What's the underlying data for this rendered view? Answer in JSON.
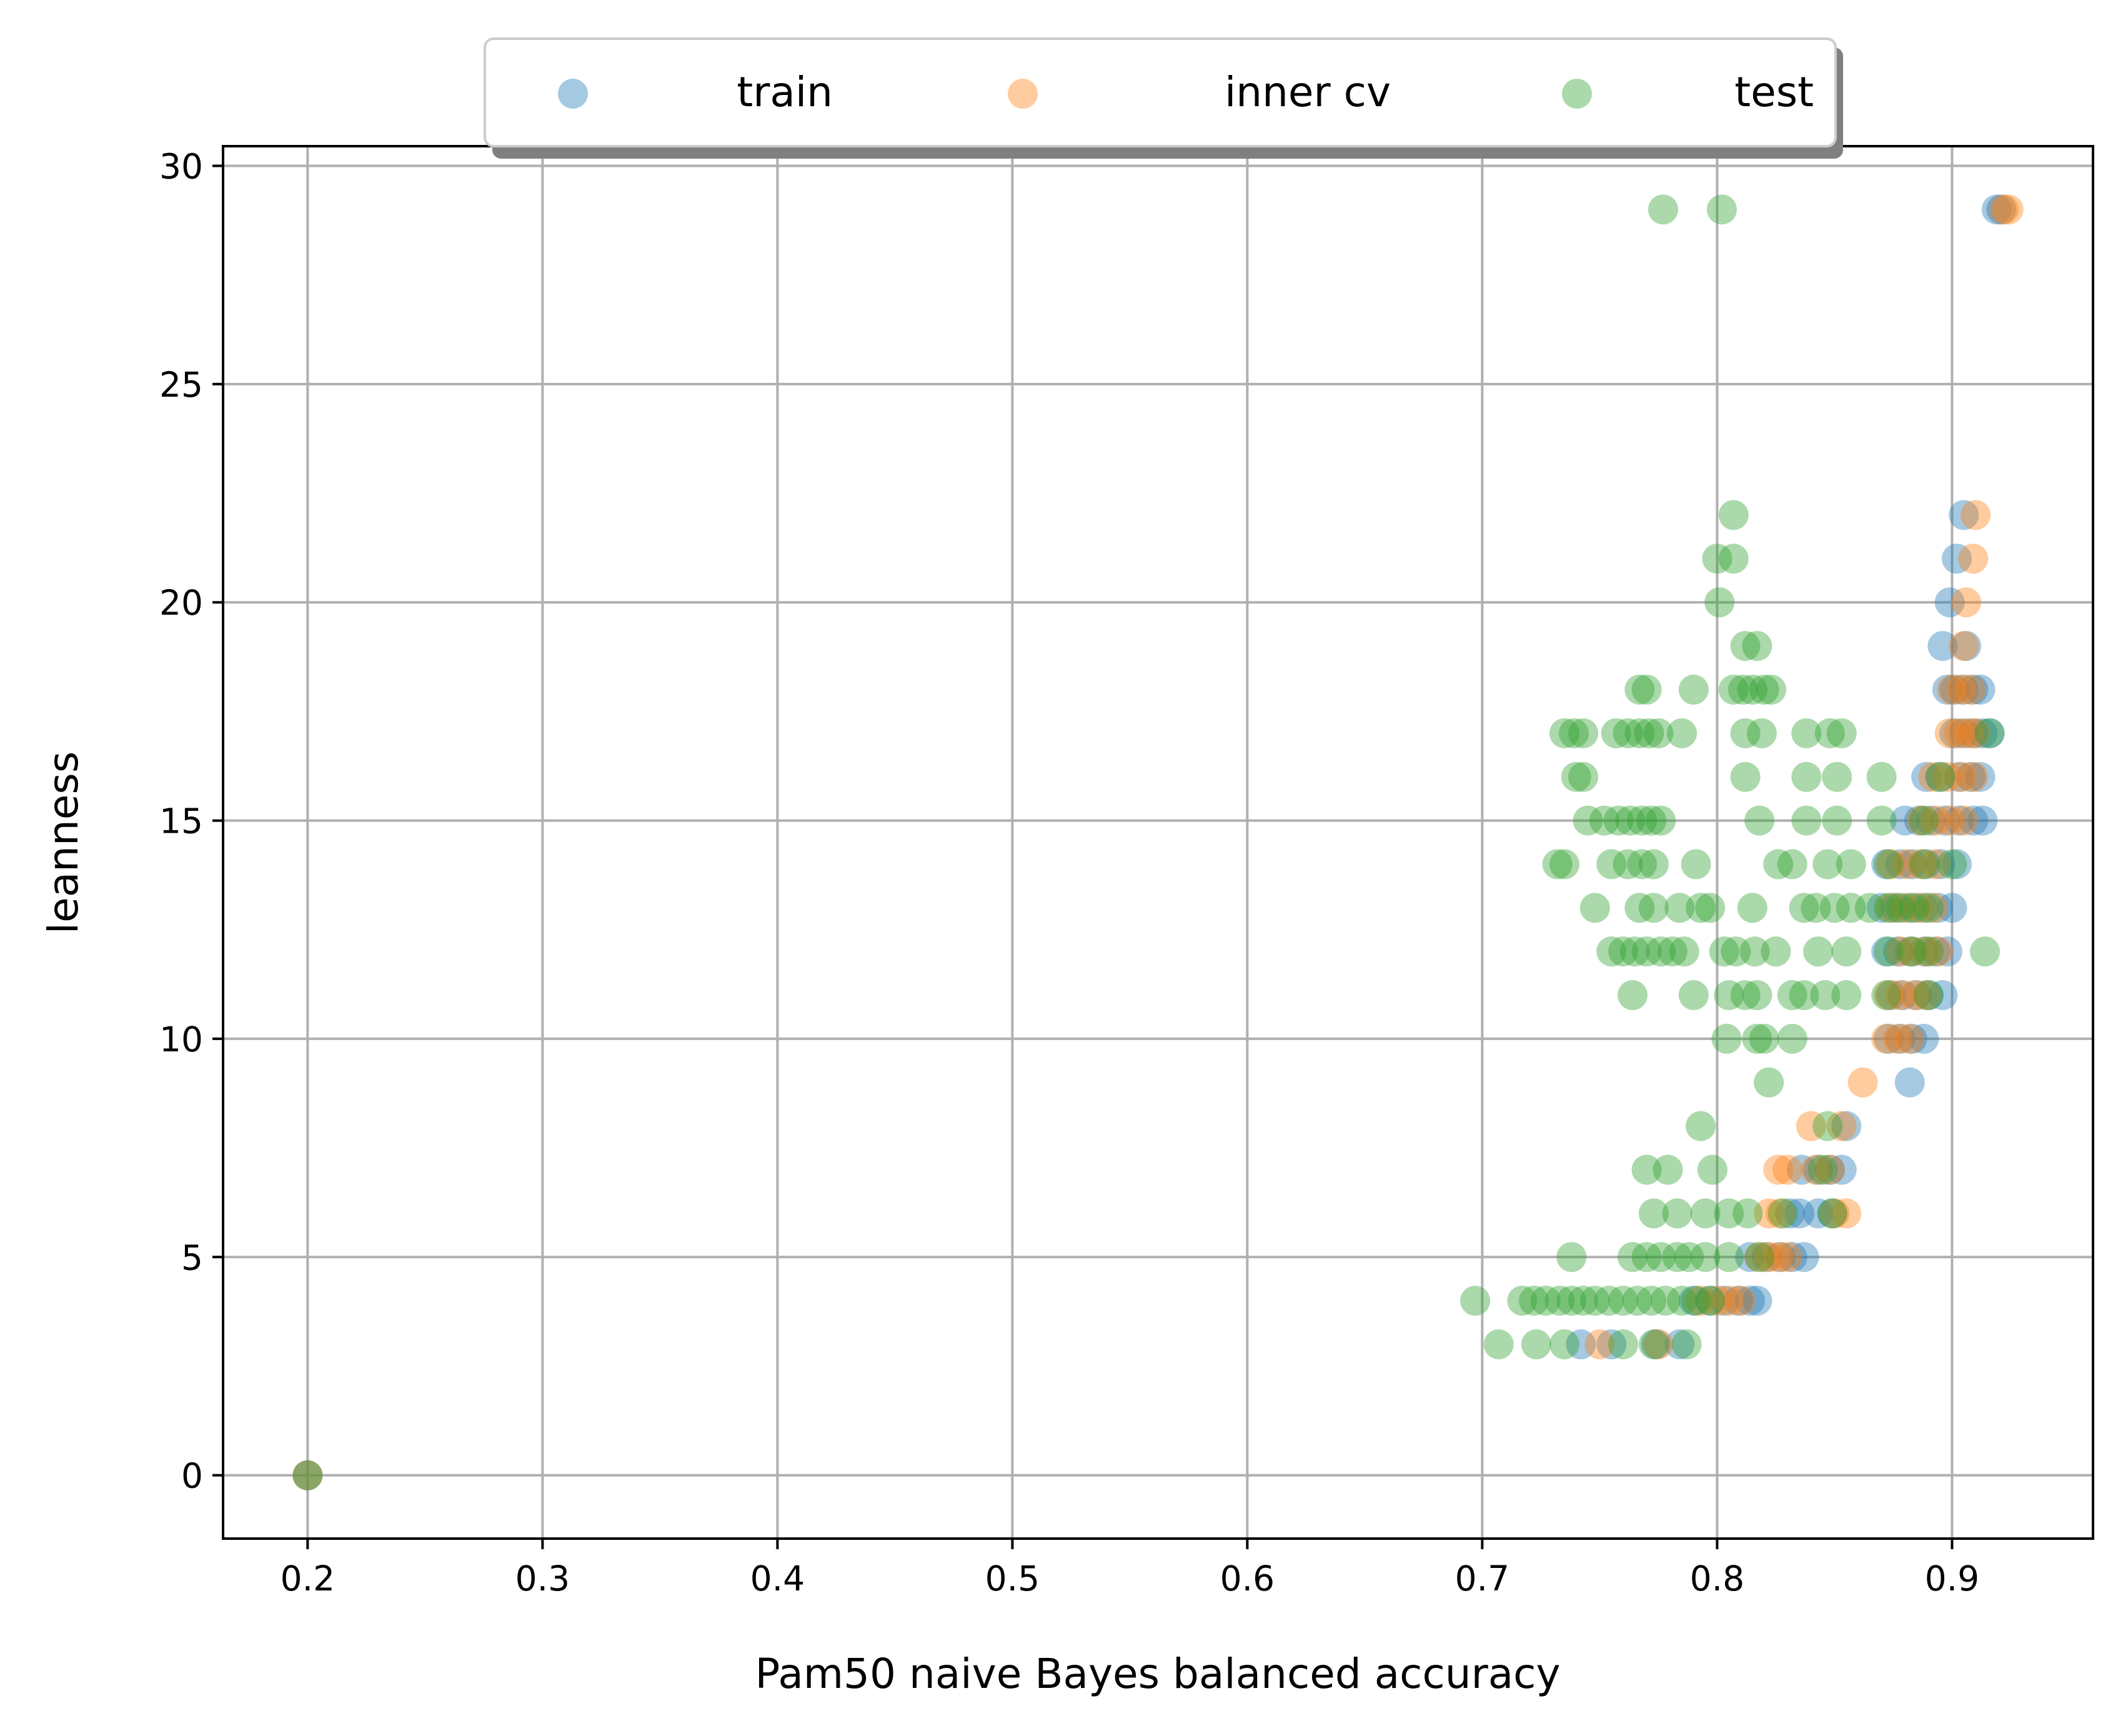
{
  "chart_data": {
    "type": "scatter",
    "xlabel": "Pam50 naive Bayes balanced accuracy",
    "ylabel": "leanness",
    "xlim": [
      0.164,
      0.96
    ],
    "ylim": [
      -1.45,
      30.45
    ],
    "xticks": [
      0.2,
      0.3,
      0.4,
      0.5,
      0.6,
      0.7,
      0.8,
      0.9
    ],
    "xtick_labels": [
      "0.2",
      "0.3",
      "0.4",
      "0.5",
      "0.6",
      "0.7",
      "0.8",
      "0.9"
    ],
    "yticks": [
      0,
      5,
      10,
      15,
      20,
      25,
      30
    ],
    "ytick_labels": [
      "0",
      "5",
      "10",
      "15",
      "20",
      "25",
      "30"
    ],
    "grid": true,
    "legend_position": "top-center",
    "series": [
      {
        "name": "train",
        "color": "#1f77b4",
        "points": [
          [
            0.2,
            0
          ],
          [
            0.919,
            29
          ],
          [
            0.921,
            29
          ],
          [
            0.905,
            22
          ],
          [
            0.902,
            21
          ],
          [
            0.899,
            20
          ],
          [
            0.896,
            19
          ],
          [
            0.906,
            19
          ],
          [
            0.898,
            18
          ],
          [
            0.901,
            18
          ],
          [
            0.905,
            18
          ],
          [
            0.909,
            18
          ],
          [
            0.912,
            18
          ],
          [
            0.901,
            17
          ],
          [
            0.905,
            17
          ],
          [
            0.909,
            17
          ],
          [
            0.913,
            17
          ],
          [
            0.916,
            17
          ],
          [
            0.889,
            16
          ],
          [
            0.895,
            16
          ],
          [
            0.903,
            16
          ],
          [
            0.908,
            16
          ],
          [
            0.912,
            16
          ],
          [
            0.88,
            15
          ],
          [
            0.886,
            15
          ],
          [
            0.891,
            15
          ],
          [
            0.897,
            15
          ],
          [
            0.903,
            15
          ],
          [
            0.909,
            15
          ],
          [
            0.913,
            15
          ],
          [
            0.872,
            14
          ],
          [
            0.878,
            14
          ],
          [
            0.883,
            14
          ],
          [
            0.889,
            14
          ],
          [
            0.895,
            14
          ],
          [
            0.902,
            14
          ],
          [
            0.87,
            13
          ],
          [
            0.876,
            13
          ],
          [
            0.882,
            13
          ],
          [
            0.888,
            13
          ],
          [
            0.894,
            13
          ],
          [
            0.9,
            13
          ],
          [
            0.872,
            12
          ],
          [
            0.877,
            12
          ],
          [
            0.882,
            12
          ],
          [
            0.888,
            12
          ],
          [
            0.893,
            12
          ],
          [
            0.898,
            12
          ],
          [
            0.874,
            11
          ],
          [
            0.879,
            11
          ],
          [
            0.885,
            11
          ],
          [
            0.89,
            11
          ],
          [
            0.896,
            11
          ],
          [
            0.873,
            10
          ],
          [
            0.878,
            10
          ],
          [
            0.883,
            10
          ],
          [
            0.888,
            10
          ],
          [
            0.882,
            9
          ],
          [
            0.855,
            8
          ],
          [
            0.836,
            7
          ],
          [
            0.843,
            7
          ],
          [
            0.848,
            7
          ],
          [
            0.853,
            7
          ],
          [
            0.831,
            6
          ],
          [
            0.835,
            6
          ],
          [
            0.843,
            6
          ],
          [
            0.849,
            6
          ],
          [
            0.814,
            5
          ],
          [
            0.821,
            5
          ],
          [
            0.827,
            5
          ],
          [
            0.832,
            5
          ],
          [
            0.837,
            5
          ],
          [
            0.79,
            4
          ],
          [
            0.797,
            4
          ],
          [
            0.803,
            4
          ],
          [
            0.809,
            4
          ],
          [
            0.814,
            4
          ],
          [
            0.817,
            4
          ],
          [
            0.742,
            3
          ],
          [
            0.755,
            3
          ],
          [
            0.774,
            3
          ],
          [
            0.784,
            3
          ]
        ]
      },
      {
        "name": "inner cv",
        "color": "#ff7f0e",
        "points": [
          [
            0.2,
            0
          ],
          [
            0.922,
            29
          ],
          [
            0.924,
            29
          ],
          [
            0.91,
            22
          ],
          [
            0.909,
            21
          ],
          [
            0.906,
            20
          ],
          [
            0.905,
            19
          ],
          [
            0.9,
            18
          ],
          [
            0.904,
            18
          ],
          [
            0.908,
            18
          ],
          [
            0.899,
            17
          ],
          [
            0.903,
            17
          ],
          [
            0.907,
            17
          ],
          [
            0.91,
            17
          ],
          [
            0.892,
            16
          ],
          [
            0.898,
            16
          ],
          [
            0.904,
            16
          ],
          [
            0.909,
            16
          ],
          [
            0.887,
            15
          ],
          [
            0.893,
            15
          ],
          [
            0.899,
            15
          ],
          [
            0.905,
            15
          ],
          [
            0.874,
            14
          ],
          [
            0.881,
            14
          ],
          [
            0.887,
            14
          ],
          [
            0.893,
            14
          ],
          [
            0.874,
            13
          ],
          [
            0.88,
            13
          ],
          [
            0.886,
            13
          ],
          [
            0.892,
            13
          ],
          [
            0.878,
            12
          ],
          [
            0.883,
            12
          ],
          [
            0.889,
            12
          ],
          [
            0.894,
            12
          ],
          [
            0.873,
            11
          ],
          [
            0.878,
            11
          ],
          [
            0.884,
            11
          ],
          [
            0.889,
            11
          ],
          [
            0.872,
            10
          ],
          [
            0.877,
            10
          ],
          [
            0.882,
            10
          ],
          [
            0.862,
            9
          ],
          [
            0.84,
            8
          ],
          [
            0.853,
            8
          ],
          [
            0.826,
            7
          ],
          [
            0.83,
            7
          ],
          [
            0.842,
            7
          ],
          [
            0.848,
            7
          ],
          [
            0.822,
            6
          ],
          [
            0.827,
            6
          ],
          [
            0.85,
            6
          ],
          [
            0.855,
            6
          ],
          [
            0.818,
            5
          ],
          [
            0.822,
            5
          ],
          [
            0.826,
            5
          ],
          [
            0.83,
            5
          ],
          [
            0.793,
            4
          ],
          [
            0.8,
            4
          ],
          [
            0.805,
            4
          ],
          [
            0.81,
            4
          ],
          [
            0.75,
            3
          ],
          [
            0.775,
            3
          ]
        ]
      },
      {
        "name": "test",
        "color": "#2ca02c",
        "points": [
          [
            0.2,
            0
          ],
          [
            0.777,
            29
          ],
          [
            0.802,
            29
          ],
          [
            0.807,
            22
          ],
          [
            0.8,
            21
          ],
          [
            0.807,
            21
          ],
          [
            0.801,
            20
          ],
          [
            0.812,
            19
          ],
          [
            0.817,
            19
          ],
          [
            0.767,
            18
          ],
          [
            0.77,
            18
          ],
          [
            0.79,
            18
          ],
          [
            0.807,
            18
          ],
          [
            0.811,
            18
          ],
          [
            0.815,
            18
          ],
          [
            0.82,
            18
          ],
          [
            0.823,
            18
          ],
          [
            0.735,
            17
          ],
          [
            0.739,
            17
          ],
          [
            0.743,
            17
          ],
          [
            0.757,
            17
          ],
          [
            0.762,
            17
          ],
          [
            0.767,
            17
          ],
          [
            0.771,
            17
          ],
          [
            0.775,
            17
          ],
          [
            0.785,
            17
          ],
          [
            0.812,
            17
          ],
          [
            0.819,
            17
          ],
          [
            0.838,
            17
          ],
          [
            0.848,
            17
          ],
          [
            0.853,
            17
          ],
          [
            0.916,
            17
          ],
          [
            0.74,
            16
          ],
          [
            0.743,
            16
          ],
          [
            0.812,
            16
          ],
          [
            0.838,
            16
          ],
          [
            0.851,
            16
          ],
          [
            0.87,
            16
          ],
          [
            0.895,
            16
          ],
          [
            0.745,
            15
          ],
          [
            0.752,
            15
          ],
          [
            0.758,
            15
          ],
          [
            0.763,
            15
          ],
          [
            0.768,
            15
          ],
          [
            0.772,
            15
          ],
          [
            0.776,
            15
          ],
          [
            0.818,
            15
          ],
          [
            0.838,
            15
          ],
          [
            0.851,
            15
          ],
          [
            0.87,
            15
          ],
          [
            0.888,
            15
          ],
          [
            0.732,
            14
          ],
          [
            0.735,
            14
          ],
          [
            0.755,
            14
          ],
          [
            0.762,
            14
          ],
          [
            0.768,
            14
          ],
          [
            0.773,
            14
          ],
          [
            0.791,
            14
          ],
          [
            0.826,
            14
          ],
          [
            0.832,
            14
          ],
          [
            0.847,
            14
          ],
          [
            0.857,
            14
          ],
          [
            0.873,
            14
          ],
          [
            0.888,
            14
          ],
          [
            0.9,
            14
          ],
          [
            0.748,
            13
          ],
          [
            0.767,
            13
          ],
          [
            0.773,
            13
          ],
          [
            0.784,
            13
          ],
          [
            0.793,
            13
          ],
          [
            0.797,
            13
          ],
          [
            0.815,
            13
          ],
          [
            0.837,
            13
          ],
          [
            0.842,
            13
          ],
          [
            0.85,
            13
          ],
          [
            0.857,
            13
          ],
          [
            0.865,
            13
          ],
          [
            0.873,
            13
          ],
          [
            0.878,
            13
          ],
          [
            0.884,
            13
          ],
          [
            0.89,
            13
          ],
          [
            0.755,
            12
          ],
          [
            0.76,
            12
          ],
          [
            0.765,
            12
          ],
          [
            0.77,
            12
          ],
          [
            0.776,
            12
          ],
          [
            0.781,
            12
          ],
          [
            0.786,
            12
          ],
          [
            0.803,
            12
          ],
          [
            0.808,
            12
          ],
          [
            0.816,
            12
          ],
          [
            0.825,
            12
          ],
          [
            0.843,
            12
          ],
          [
            0.855,
            12
          ],
          [
            0.873,
            12
          ],
          [
            0.883,
            12
          ],
          [
            0.89,
            12
          ],
          [
            0.914,
            12
          ],
          [
            0.764,
            11
          ],
          [
            0.79,
            11
          ],
          [
            0.805,
            11
          ],
          [
            0.812,
            11
          ],
          [
            0.817,
            11
          ],
          [
            0.832,
            11
          ],
          [
            0.837,
            11
          ],
          [
            0.846,
            11
          ],
          [
            0.855,
            11
          ],
          [
            0.872,
            11
          ],
          [
            0.89,
            11
          ],
          [
            0.804,
            10
          ],
          [
            0.817,
            10
          ],
          [
            0.82,
            10
          ],
          [
            0.832,
            10
          ],
          [
            0.822,
            9
          ],
          [
            0.793,
            8
          ],
          [
            0.847,
            8
          ],
          [
            0.77,
            7
          ],
          [
            0.779,
            7
          ],
          [
            0.798,
            7
          ],
          [
            0.845,
            7
          ],
          [
            0.773,
            6
          ],
          [
            0.783,
            6
          ],
          [
            0.795,
            6
          ],
          [
            0.805,
            6
          ],
          [
            0.813,
            6
          ],
          [
            0.828,
            6
          ],
          [
            0.849,
            6
          ],
          [
            0.738,
            5
          ],
          [
            0.764,
            5
          ],
          [
            0.77,
            5
          ],
          [
            0.776,
            5
          ],
          [
            0.783,
            5
          ],
          [
            0.788,
            5
          ],
          [
            0.795,
            5
          ],
          [
            0.805,
            5
          ],
          [
            0.818,
            5
          ],
          [
            0.697,
            4
          ],
          [
            0.717,
            4
          ],
          [
            0.722,
            4
          ],
          [
            0.727,
            4
          ],
          [
            0.733,
            4
          ],
          [
            0.738,
            4
          ],
          [
            0.743,
            4
          ],
          [
            0.748,
            4
          ],
          [
            0.754,
            4
          ],
          [
            0.76,
            4
          ],
          [
            0.766,
            4
          ],
          [
            0.772,
            4
          ],
          [
            0.778,
            4
          ],
          [
            0.785,
            4
          ],
          [
            0.791,
            4
          ],
          [
            0.797,
            4
          ],
          [
            0.707,
            3
          ],
          [
            0.723,
            3
          ],
          [
            0.735,
            3
          ],
          [
            0.76,
            3
          ],
          [
            0.773,
            3
          ],
          [
            0.787,
            3
          ]
        ]
      }
    ]
  }
}
